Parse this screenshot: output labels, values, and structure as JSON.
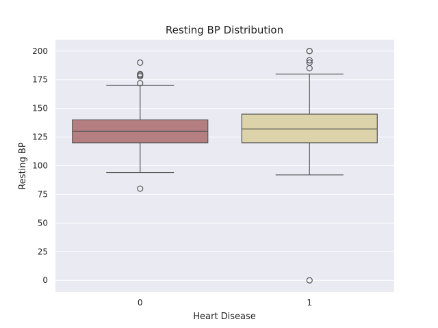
{
  "chart_data": {
    "type": "box",
    "title": "Resting BP Distribution",
    "xlabel": "Heart Disease",
    "ylabel": "Resting BP",
    "ylim": [
      -10,
      210
    ],
    "yticks": [
      0,
      25,
      50,
      75,
      100,
      125,
      150,
      175,
      200
    ],
    "grid": true,
    "colors": {
      "background": "#eaeaf2",
      "grid": "#ffffff",
      "line": "#555555"
    },
    "categories": [
      "0",
      "1"
    ],
    "boxes": [
      {
        "category": "0",
        "whisker_low": 94,
        "q1": 120,
        "median": 130,
        "q3": 140,
        "whisker_high": 170,
        "outliers": [
          80,
          172,
          178,
          179,
          180,
          190
        ],
        "color": "#b57f81"
      },
      {
        "category": "1",
        "whisker_low": 92,
        "q1": 120,
        "median": 132,
        "q3": 145,
        "whisker_high": 180,
        "outliers": [
          0,
          185,
          190,
          192,
          200,
          200
        ],
        "color": "#ddd3ab"
      }
    ]
  }
}
